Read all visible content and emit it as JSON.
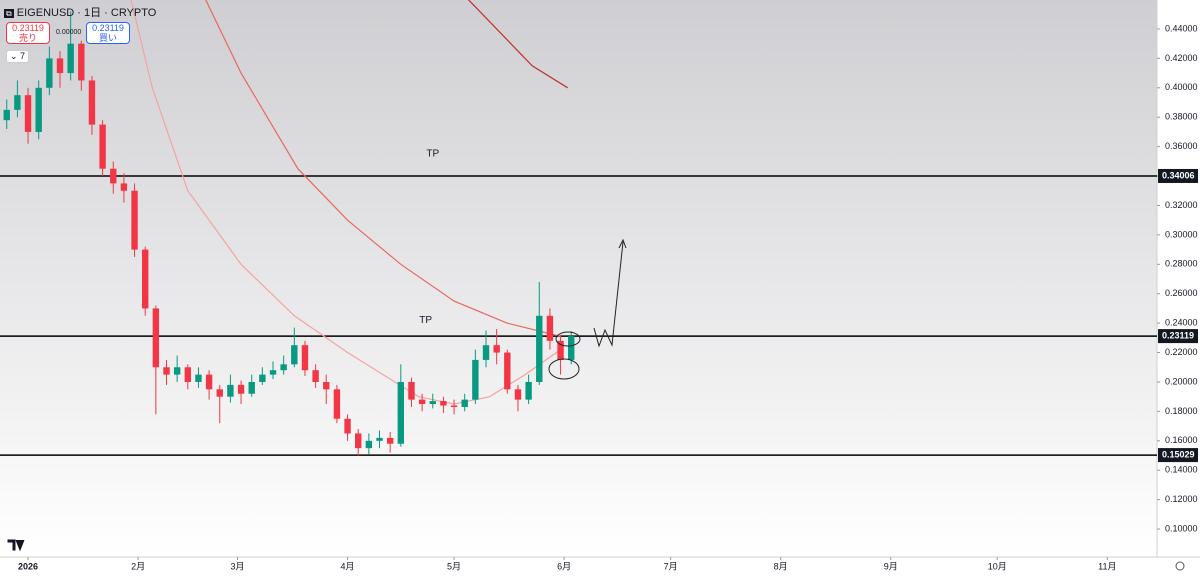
{
  "chart_data": {
    "type": "candlestick",
    "symbol": "EIGENUSD · 1日 · CRYPTO",
    "sell": {
      "price": 0.23119,
      "label": "売り"
    },
    "buy": {
      "price": 0.23119,
      "label": "買い"
    },
    "spread": "0.00000",
    "indicators": "7",
    "annotations": [
      {
        "text": "TP",
        "x": 114,
        "y": 0.355
      },
      {
        "text": "TP",
        "x": 112,
        "y": 0.242
      }
    ],
    "candles": {
      "x": [
        -6,
        -3,
        0,
        3,
        6,
        9,
        12,
        15,
        18,
        21,
        24,
        27,
        30,
        33,
        36,
        39,
        42,
        45,
        48,
        51,
        54,
        57,
        60,
        63,
        66,
        69,
        72,
        75,
        78,
        81,
        84,
        87,
        90,
        93,
        96,
        99,
        102,
        105,
        108,
        111,
        114,
        117,
        120,
        123,
        126,
        129,
        132,
        135,
        138,
        141,
        144,
        147,
        150,
        153
      ],
      "open": [
        0.378,
        0.385,
        0.395,
        0.37,
        0.4,
        0.42,
        0.41,
        0.43,
        0.405,
        0.375,
        0.345,
        0.335,
        0.33,
        0.29,
        0.25,
        0.21,
        0.205,
        0.21,
        0.2,
        0.205,
        0.195,
        0.19,
        0.198,
        0.192,
        0.2,
        0.205,
        0.208,
        0.212,
        0.225,
        0.208,
        0.2,
        0.195,
        0.175,
        0.165,
        0.155,
        0.16,
        0.162,
        0.158,
        0.2,
        0.188,
        0.185,
        0.187,
        0.184,
        0.183,
        0.188,
        0.215,
        0.225,
        0.22,
        0.195,
        0.188,
        0.2,
        0.245,
        0.228,
        0.215
      ],
      "high": [
        0.392,
        0.405,
        0.4,
        0.405,
        0.428,
        0.425,
        0.452,
        0.432,
        0.408,
        0.378,
        0.35,
        0.342,
        0.335,
        0.292,
        0.252,
        0.215,
        0.218,
        0.212,
        0.21,
        0.208,
        0.198,
        0.205,
        0.201,
        0.205,
        0.21,
        0.214,
        0.218,
        0.237,
        0.228,
        0.212,
        0.205,
        0.198,
        0.178,
        0.168,
        0.165,
        0.167,
        0.166,
        0.212,
        0.203,
        0.192,
        0.192,
        0.19,
        0.188,
        0.192,
        0.222,
        0.235,
        0.236,
        0.222,
        0.198,
        0.205,
        0.268,
        0.25,
        0.232,
        0.2345
      ],
      "low": [
        0.372,
        0.38,
        0.362,
        0.365,
        0.395,
        0.4,
        0.405,
        0.398,
        0.368,
        0.34,
        0.328,
        0.322,
        0.285,
        0.245,
        0.178,
        0.198,
        0.2,
        0.195,
        0.196,
        0.188,
        0.172,
        0.186,
        0.185,
        0.19,
        0.198,
        0.202,
        0.205,
        0.21,
        0.204,
        0.196,
        0.185,
        0.172,
        0.16,
        0.15,
        0.151,
        0.155,
        0.152,
        0.156,
        0.183,
        0.18,
        0.182,
        0.179,
        0.178,
        0.18,
        0.185,
        0.21,
        0.212,
        0.192,
        0.18,
        0.185,
        0.198,
        0.222,
        0.205,
        0.212
      ],
      "close": [
        0.385,
        0.395,
        0.37,
        0.4,
        0.42,
        0.41,
        0.43,
        0.405,
        0.375,
        0.345,
        0.335,
        0.33,
        0.29,
        0.25,
        0.21,
        0.205,
        0.21,
        0.2,
        0.205,
        0.195,
        0.19,
        0.198,
        0.192,
        0.2,
        0.205,
        0.208,
        0.212,
        0.225,
        0.208,
        0.2,
        0.195,
        0.175,
        0.165,
        0.155,
        0.16,
        0.162,
        0.158,
        0.2,
        0.188,
        0.185,
        0.187,
        0.184,
        0.183,
        0.188,
        0.215,
        0.225,
        0.22,
        0.195,
        0.188,
        0.2,
        0.245,
        0.228,
        0.215,
        0.2312
      ],
      "up_color": "#089981",
      "down_color": "#f23645"
    },
    "lines": [
      {
        "color": "#f4a3a0",
        "x": [
          29,
          35,
          45,
          60,
          75,
          90,
          100,
          110,
          120,
          130,
          140,
          150
        ],
        "values": [
          0.46,
          0.4,
          0.33,
          0.28,
          0.245,
          0.22,
          0.205,
          0.19,
          0.185,
          0.19,
          0.205,
          0.222
        ]
      },
      {
        "color": "#e8675f",
        "x": [
          50,
          60,
          76,
          90,
          105,
          120,
          135,
          150
        ],
        "values": [
          0.46,
          0.41,
          0.345,
          0.31,
          0.28,
          0.255,
          0.24,
          0.231
        ]
      },
      {
        "color": "#c0302a",
        "x": [
          124,
          132,
          142,
          152
        ],
        "values": [
          0.46,
          0.44,
          0.415,
          0.4
        ]
      }
    ],
    "hlines": [
      {
        "value": 0.34006
      },
      {
        "value": 0.23119
      },
      {
        "value": 0.15029
      }
    ],
    "xlim": [
      -7.9,
      318
    ],
    "xticks": [
      {
        "value": 0,
        "label": "2026"
      },
      {
        "value": 31,
        "label": "2月"
      },
      {
        "value": 59,
        "label": "3月"
      },
      {
        "value": 90,
        "label": "4月"
      },
      {
        "value": 120,
        "label": "5月"
      },
      {
        "value": 151,
        "label": "6月"
      },
      {
        "value": 181,
        "label": "7月"
      },
      {
        "value": 212,
        "label": "8月"
      },
      {
        "value": 243,
        "label": "9月"
      },
      {
        "value": 273,
        "label": "10月"
      },
      {
        "value": 304,
        "label": "11月"
      }
    ],
    "ylim": [
      0.081,
      0.4597
    ],
    "yticks": [
      {
        "value": 0.1,
        "label": "0.10000"
      },
      {
        "value": 0.12,
        "label": "0.12000"
      },
      {
        "value": 0.14,
        "label": "0.14000"
      },
      {
        "value": 0.16,
        "label": "0.16000"
      },
      {
        "value": 0.18,
        "label": "0.18000"
      },
      {
        "value": 0.2,
        "label": "0.20000"
      },
      {
        "value": 0.22,
        "label": "0.22000"
      },
      {
        "value": 0.24,
        "label": "0.24000"
      },
      {
        "value": 0.26,
        "label": "0.26000"
      },
      {
        "value": 0.28,
        "label": "0.28000"
      },
      {
        "value": 0.3,
        "label": "0.30000"
      },
      {
        "value": 0.32,
        "label": "0.32000"
      },
      {
        "value": 0.34,
        "label": "0.34000"
      },
      {
        "value": 0.36,
        "label": "0.36000"
      },
      {
        "value": 0.38,
        "label": "0.38000"
      },
      {
        "value": 0.4,
        "label": "0.40000"
      },
      {
        "value": 0.42,
        "label": "0.42000"
      },
      {
        "value": 0.44,
        "label": "0.44000"
      }
    ]
  }
}
